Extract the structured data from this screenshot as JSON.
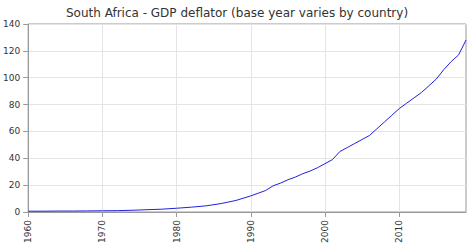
{
  "chart_data": {
    "type": "line",
    "title": "South Africa - GDP deflator (base year varies by country)",
    "x": [
      1960,
      1962,
      1964,
      1966,
      1968,
      1970,
      1972,
      1974,
      1976,
      1978,
      1980,
      1982,
      1984,
      1986,
      1988,
      1990,
      1991,
      1992,
      1993,
      1994,
      1995,
      1996,
      1997,
      1998,
      1999,
      2000,
      2001,
      2002,
      2003,
      2004,
      2005,
      2006,
      2007,
      2008,
      2009,
      2010,
      2011,
      2012,
      2013,
      2014,
      2015,
      2016,
      2017,
      2018,
      2019
    ],
    "values": [
      0.6,
      0.6,
      0.7,
      0.7,
      0.8,
      0.9,
      1.0,
      1.3,
      1.7,
      2.1,
      2.8,
      3.6,
      4.6,
      6.3,
      8.6,
      12.0,
      14.0,
      16.0,
      19.5,
      21.5,
      24.0,
      26.0,
      28.5,
      30.5,
      33.0,
      36.0,
      39.0,
      45.0,
      48.0,
      51.0,
      54.0,
      57.0,
      62.0,
      67.0,
      72.0,
      77.0,
      81.0,
      85.0,
      89.0,
      94.0,
      99.0,
      106.0,
      112.0,
      117.0,
      128.0
    ],
    "color": "#2020e0",
    "xlim": [
      1960,
      2019
    ],
    "xticks": [
      1960,
      1970,
      1980,
      1990,
      2000,
      2010
    ],
    "ylim": [
      0,
      140
    ],
    "yticks": [
      0,
      20,
      40,
      60,
      80,
      100,
      120,
      140
    ],
    "grid": true
  }
}
